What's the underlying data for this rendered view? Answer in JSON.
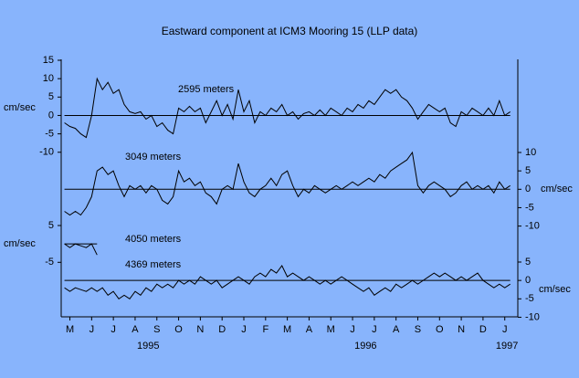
{
  "chart_data": {
    "type": "line",
    "title": "Eastward component at ICM3 Mooring 15 (LLP data)",
    "xlim": [
      -0.4,
      20.6
    ],
    "xticks": [
      {
        "value": 0,
        "label": "M"
      },
      {
        "value": 1,
        "label": "J"
      },
      {
        "value": 2,
        "label": "J"
      },
      {
        "value": 3,
        "label": "A"
      },
      {
        "value": 4,
        "label": "S"
      },
      {
        "value": 5,
        "label": "O"
      },
      {
        "value": 6,
        "label": "N"
      },
      {
        "value": 7,
        "label": "D"
      },
      {
        "value": 8,
        "label": "J"
      },
      {
        "value": 9,
        "label": "F"
      },
      {
        "value": 10,
        "label": "M"
      },
      {
        "value": 11,
        "label": "A"
      },
      {
        "value": 12,
        "label": "M"
      },
      {
        "value": 13,
        "label": "J"
      },
      {
        "value": 14,
        "label": "J"
      },
      {
        "value": 15,
        "label": "A"
      },
      {
        "value": 16,
        "label": "S"
      },
      {
        "value": 17,
        "label": "O"
      },
      {
        "value": 18,
        "label": "N"
      },
      {
        "value": 19,
        "label": "D"
      },
      {
        "value": 20,
        "label": "J"
      }
    ],
    "year_ticks": [
      {
        "value": 3.6,
        "label": "1995"
      },
      {
        "value": 13.6,
        "label": "1996"
      },
      {
        "value": 20.1,
        "label": "1997"
      }
    ],
    "x": [
      -0.25,
      0,
      0.25,
      0.5,
      0.75,
      1,
      1.25,
      1.5,
      1.75,
      2,
      2.25,
      2.5,
      2.75,
      3,
      3.25,
      3.5,
      3.75,
      4,
      4.25,
      4.5,
      4.75,
      5,
      5.25,
      5.5,
      5.75,
      6,
      6.25,
      6.5,
      6.75,
      7,
      7.25,
      7.5,
      7.75,
      8,
      8.25,
      8.5,
      8.75,
      9,
      9.25,
      9.5,
      9.75,
      10,
      10.25,
      10.5,
      10.75,
      11,
      11.25,
      11.5,
      11.75,
      12,
      12.25,
      12.5,
      12.75,
      13,
      13.25,
      13.5,
      13.75,
      14,
      14.25,
      14.5,
      14.75,
      15,
      15.25,
      15.5,
      15.75,
      16,
      16.25,
      16.5,
      16.75,
      17,
      17.25,
      17.5,
      17.75,
      18,
      18.25,
      18.5,
      18.75,
      19,
      19.25,
      19.5,
      19.75,
      20,
      20.25
    ],
    "series": [
      {
        "name": "2595 meters",
        "color": "#000000",
        "unit": "cm/sec",
        "axis_side": "left",
        "zero_line": true,
        "ylim": [
          -10,
          15
        ],
        "yticks": [
          -10,
          -5,
          0,
          5,
          10,
          15
        ],
        "values": [
          -2,
          -3,
          -3.5,
          -5,
          -6,
          0,
          10,
          7,
          9,
          6,
          7,
          3,
          1,
          0.5,
          1,
          -1,
          0,
          -3,
          -2,
          -4,
          -5,
          2,
          1,
          2.5,
          1,
          2,
          -2,
          1,
          4,
          0,
          3,
          -1,
          7,
          1,
          4,
          -2,
          1,
          0,
          2,
          1,
          3,
          0,
          1,
          -1,
          0.5,
          1,
          0,
          1.5,
          0,
          2,
          1,
          0,
          2,
          1,
          3,
          2,
          4,
          3,
          5,
          7,
          6,
          7,
          5,
          4,
          2,
          -1,
          1,
          3,
          2,
          1,
          2,
          -2,
          -3,
          1,
          0,
          2,
          1,
          0,
          2,
          0,
          4,
          0,
          1
        ]
      },
      {
        "name": "3049 meters",
        "color": "#000000",
        "unit": "cm/sec",
        "axis_side": "right",
        "zero_line": true,
        "ylim": [
          -10,
          10
        ],
        "yticks": [
          -10,
          -5,
          0,
          5,
          10
        ],
        "values": [
          -6,
          -7,
          -6,
          -7,
          -5,
          -2,
          5,
          6,
          4,
          5,
          1,
          -2,
          1,
          0,
          1,
          -1,
          1,
          0,
          -3,
          -4,
          -2,
          5,
          2,
          3,
          1,
          2,
          -1,
          -2,
          -4,
          0,
          1,
          0,
          7,
          2,
          -1,
          -2,
          0,
          1,
          3,
          1,
          4,
          5,
          1,
          -2,
          0,
          -1,
          1,
          0,
          -1,
          0,
          1,
          0,
          1,
          2,
          1,
          2,
          3,
          2,
          4,
          3,
          5,
          6,
          7,
          8,
          10,
          1,
          -1,
          1,
          2,
          1,
          0,
          -2,
          -1,
          1,
          2,
          0,
          1,
          0,
          1,
          -1,
          2,
          0,
          1
        ]
      },
      {
        "name": "4050 meters",
        "color": "#000000",
        "unit": "cm/sec",
        "axis_side": "left",
        "zero_line": true,
        "ylim": [
          -5,
          5
        ],
        "yticks": [
          -5,
          5
        ],
        "values": [
          0,
          -1,
          0,
          -0.5,
          -1,
          0,
          -3,
          null,
          null,
          null,
          null,
          null,
          null,
          null,
          null,
          null,
          null,
          null,
          null,
          null,
          null,
          null,
          null,
          null,
          null,
          null,
          null,
          null,
          null,
          null,
          null,
          null,
          null,
          null,
          null,
          null,
          null,
          null,
          null,
          null,
          null,
          null,
          null,
          null,
          null,
          null,
          null,
          null,
          null,
          null,
          null,
          null,
          null,
          null,
          null,
          null,
          null,
          null,
          null,
          null,
          null,
          null,
          null,
          null,
          null,
          null,
          null,
          null,
          null,
          null,
          null,
          null,
          null,
          null,
          null,
          null,
          null,
          null,
          null,
          null,
          null,
          null,
          null
        ]
      },
      {
        "name": "4369 meters",
        "color": "#000000",
        "unit": "cm/sec",
        "axis_side": "right",
        "zero_line": true,
        "ylim": [
          -10,
          5
        ],
        "yticks": [
          -10,
          -5,
          0,
          5
        ],
        "values": [
          -2,
          -3,
          -2,
          -2.5,
          -3,
          -2,
          -3,
          -2,
          -4,
          -3,
          -5,
          -4,
          -5,
          -3,
          -4,
          -2,
          -3,
          -1,
          -2,
          -1,
          -2,
          0,
          -1,
          0,
          -1,
          1,
          0,
          -1,
          0,
          -2,
          -1,
          0,
          1,
          0,
          -1,
          1,
          2,
          1,
          3,
          2,
          4,
          1,
          2,
          1,
          0,
          1,
          0,
          -1,
          0,
          -1,
          0,
          1,
          0,
          -1,
          -2,
          -3,
          -2,
          -4,
          -3,
          -2,
          -3,
          -1,
          -2,
          -1,
          0,
          -1,
          0,
          1,
          2,
          1,
          2,
          1,
          0,
          1,
          0,
          1,
          2,
          0,
          -1,
          -2,
          -1,
          -2,
          -1
        ]
      }
    ]
  }
}
